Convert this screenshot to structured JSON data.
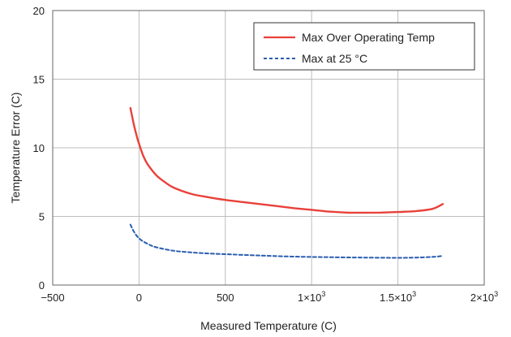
{
  "chart_data": {
    "type": "line",
    "xlabel": "Measured Temperature (C)",
    "ylabel": "Temperature Error (C)",
    "xlim": [
      -500,
      2000
    ],
    "ylim": [
      0,
      20
    ],
    "x_ticks": [
      -500,
      0,
      500,
      1000,
      1500,
      2000
    ],
    "x_tick_labels": [
      "−500",
      "0",
      "500",
      "1×10",
      "1.5×10",
      "2×10"
    ],
    "x_tick_superscripts": [
      "",
      "",
      "",
      "3",
      "3",
      "3"
    ],
    "y_ticks": [
      0,
      5,
      10,
      15,
      20
    ],
    "y_tick_labels": [
      "0",
      "5",
      "10",
      "15",
      "20"
    ],
    "grid": true,
    "legend_position": "top-right",
    "series": [
      {
        "name": "Max Over Operating Temp",
        "color": "#e8413a",
        "style": "solid",
        "x": [
          -50,
          -30,
          -10,
          0,
          25,
          50,
          100,
          150,
          200,
          300,
          400,
          500,
          600,
          700,
          800,
          900,
          1000,
          1100,
          1200,
          1300,
          1400,
          1500,
          1600,
          1700,
          1760
        ],
        "y": [
          12.9,
          11.7,
          10.7,
          10.3,
          9.4,
          8.8,
          8.0,
          7.5,
          7.1,
          6.65,
          6.4,
          6.2,
          6.05,
          5.9,
          5.75,
          5.6,
          5.48,
          5.35,
          5.28,
          5.27,
          5.28,
          5.32,
          5.38,
          5.55,
          5.9
        ]
      },
      {
        "name": "Max at 25 °C",
        "color": "#2a5db0",
        "style": "dashed",
        "x": [
          -50,
          -30,
          0,
          50,
          100,
          200,
          300,
          400,
          500,
          700,
          900,
          1100,
          1300,
          1500,
          1600,
          1700,
          1760
        ],
        "y": [
          4.4,
          3.9,
          3.4,
          3.0,
          2.75,
          2.5,
          2.38,
          2.3,
          2.25,
          2.15,
          2.07,
          2.03,
          2.0,
          1.98,
          2.0,
          2.05,
          2.12
        ]
      }
    ]
  }
}
